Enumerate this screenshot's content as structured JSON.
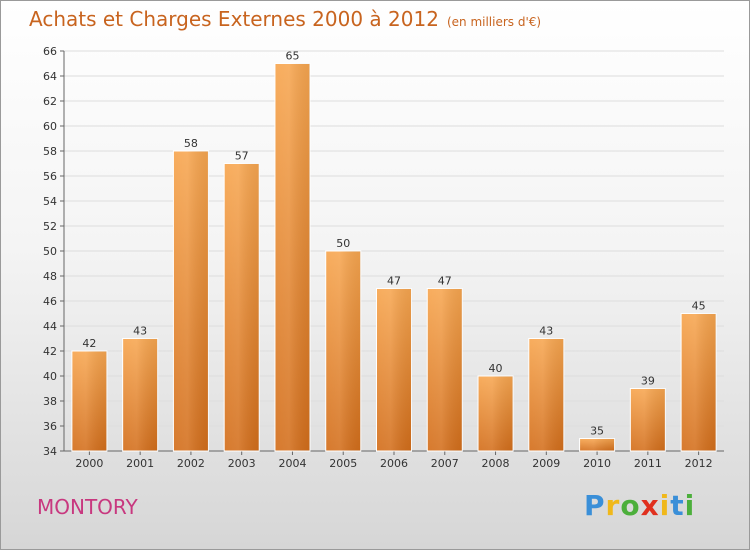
{
  "title": "Achats et Charges Externes 2000 à 2012",
  "subtitle": "(en milliers d'€)",
  "commune": "MONTORY",
  "logo": {
    "letters": [
      "P",
      "r",
      "o",
      "x",
      "i",
      "t",
      "i"
    ],
    "colors": [
      "#3a8fd8",
      "#f0b81a",
      "#4caf3b",
      "#e0301e",
      "#f0b81a",
      "#3a8fd8",
      "#4caf3b"
    ]
  },
  "colors": {
    "bar_top": "#f7a650",
    "bar_bottom": "#d36e1b",
    "title": "#c8641f",
    "commune": "#c8387f"
  },
  "chart_data": {
    "type": "bar",
    "categories": [
      "2000",
      "2001",
      "2002",
      "2003",
      "2004",
      "2005",
      "2006",
      "2007",
      "2008",
      "2009",
      "2010",
      "2011",
      "2012"
    ],
    "values": [
      42,
      43,
      58,
      57,
      65,
      50,
      47,
      47,
      40,
      43,
      35,
      39,
      45
    ],
    "ylim": [
      34,
      66
    ],
    "yticks": [
      34,
      36,
      38,
      40,
      42,
      44,
      46,
      48,
      50,
      52,
      54,
      56,
      58,
      60,
      62,
      64,
      66
    ],
    "grid": true,
    "legend": "none"
  }
}
